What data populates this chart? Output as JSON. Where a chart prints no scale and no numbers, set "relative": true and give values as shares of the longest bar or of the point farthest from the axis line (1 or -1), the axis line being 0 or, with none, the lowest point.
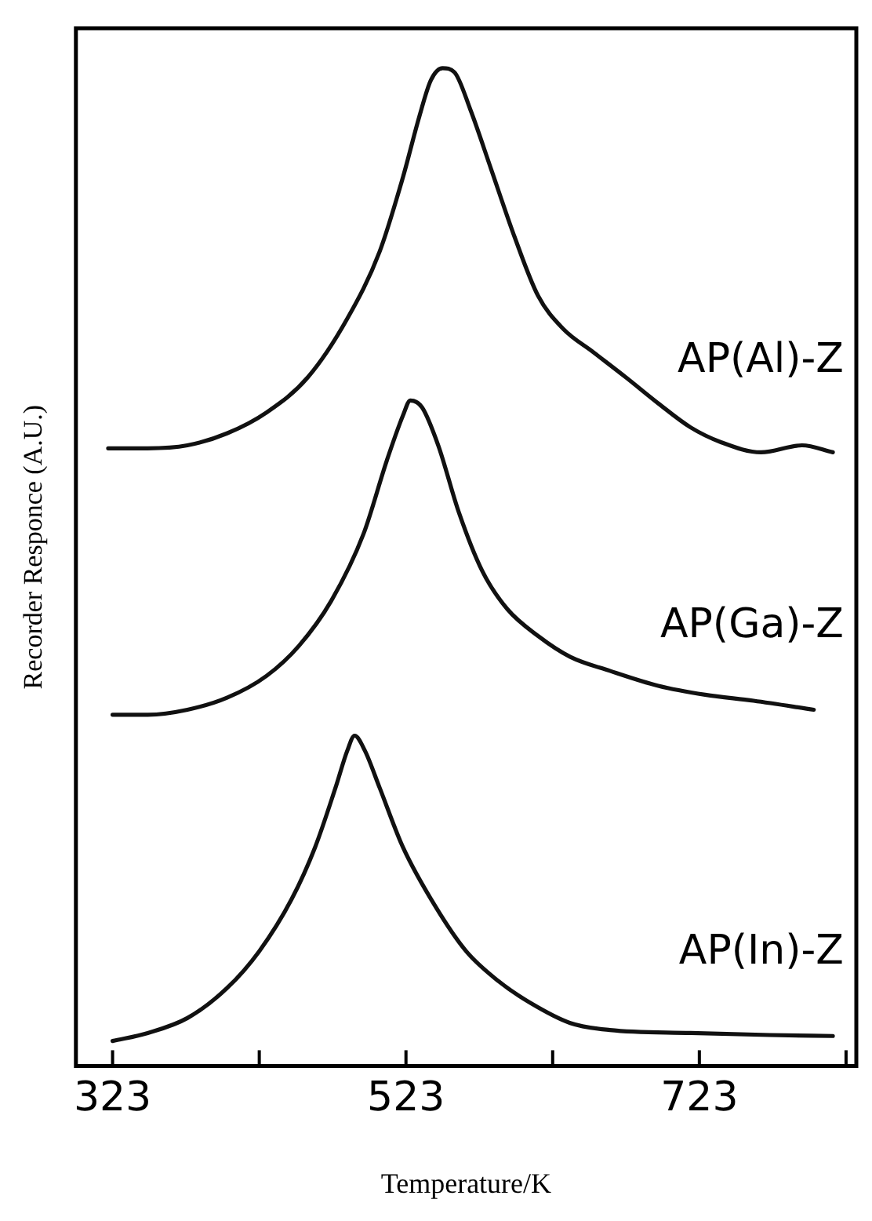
{
  "chart_data": {
    "type": "line",
    "relative": true,
    "xlabel": "Temperature/K",
    "ylabel": "Recorder Responce (A.U.)",
    "xlim": [
      298,
      830
    ],
    "xticks": [
      323,
      {
        "value": 423,
        "label": null
      },
      523,
      {
        "value": 623,
        "label": null
      },
      723,
      {
        "value": 823,
        "label": null
      }
    ],
    "tick_labels": "x",
    "grid": false,
    "legend": false,
    "marker": "none",
    "line_style": "solid",
    "series": [
      {
        "name": "AP(Al)-Z",
        "color": "#111111",
        "x": [
          320,
          347,
          374,
          401,
          428,
          456,
          483,
          505,
          521,
          532,
          540,
          548,
          556,
          567,
          581,
          597,
          613,
          630,
          651,
          673,
          695,
          717,
          738,
          765,
          793,
          814
        ],
        "values": [
          0.619,
          0.619,
          0.622,
          0.634,
          0.655,
          0.69,
          0.749,
          0.816,
          0.891,
          0.951,
          0.988,
          1,
          0.996,
          0.958,
          0.899,
          0.831,
          0.772,
          0.739,
          0.715,
          0.69,
          0.664,
          0.64,
          0.625,
          0.615,
          0.622,
          0.615
        ]
      },
      {
        "name": "AP(Ga)-Z",
        "color": "#111111",
        "x": [
          323,
          347,
          374,
          401,
          428,
          450,
          472,
          494,
          510,
          521,
          526,
          534,
          545,
          559,
          575,
          592,
          613,
          635,
          662,
          695,
          727,
          760,
          801
        ],
        "values": [
          0.352,
          0.352,
          0.357,
          0.369,
          0.391,
          0.421,
          0.466,
          0.533,
          0.607,
          0.652,
          0.667,
          0.66,
          0.622,
          0.555,
          0.496,
          0.458,
          0.431,
          0.41,
          0.396,
          0.381,
          0.372,
          0.366,
          0.357
        ]
      },
      {
        "name": "AP(In)-Z",
        "color": "#111111",
        "x": [
          323,
          347,
          374,
          401,
          423,
          445,
          461,
          475,
          483,
          488,
          495,
          505,
          521,
          543,
          564,
          586,
          608,
          635,
          662,
          717,
          771,
          814
        ],
        "values": [
          0.025,
          0.033,
          0.048,
          0.078,
          0.115,
          0.167,
          0.219,
          0.279,
          0.316,
          0.331,
          0.316,
          0.279,
          0.219,
          0.16,
          0.115,
          0.085,
          0.063,
          0.043,
          0.036,
          0.033,
          0.031,
          0.03
        ]
      }
    ]
  }
}
